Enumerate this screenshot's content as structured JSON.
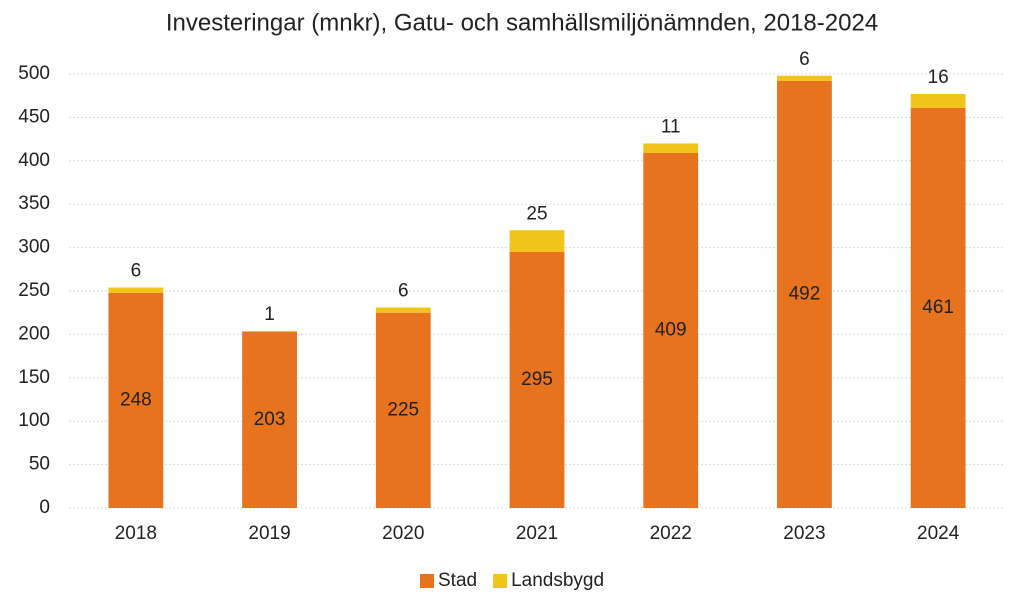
{
  "chart_data": {
    "type": "stacked_bar",
    "title": "Investeringar (mnkr), Gatu- och samhällsmiljönämnden, 2018-2024",
    "categories": [
      "2018",
      "2019",
      "2020",
      "2021",
      "2022",
      "2023",
      "2024"
    ],
    "series": [
      {
        "name": "Stad",
        "color": "#e8731f",
        "values": [
          248,
          203,
          225,
          295,
          409,
          492,
          461
        ]
      },
      {
        "name": "Landsbygd",
        "color": "#f0c419",
        "values": [
          6,
          1,
          6,
          25,
          11,
          6,
          16
        ]
      }
    ],
    "ylim": [
      0,
      500
    ],
    "yticks": [
      0,
      50,
      100,
      150,
      200,
      250,
      300,
      350,
      400,
      450,
      500
    ],
    "grid": true,
    "legend": "bottom"
  }
}
